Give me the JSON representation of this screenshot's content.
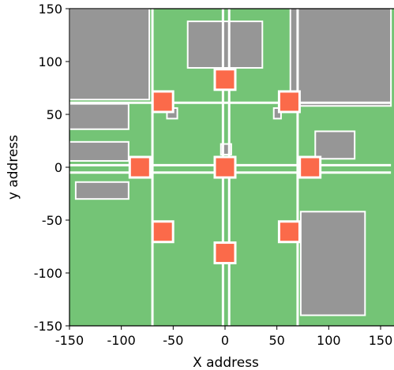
{
  "chart_data": {
    "type": "scatter",
    "title": "",
    "xlabel": "X address",
    "ylabel": "y address",
    "xlim": [
      -150,
      150
    ],
    "ylim": [
      -150,
      150
    ],
    "xticks": [
      -150,
      -100,
      -50,
      0,
      50,
      100,
      150
    ],
    "yticks": [
      -150,
      -100,
      -50,
      0,
      50,
      100,
      150
    ],
    "xtick_labels": [
      "-150",
      "-100",
      "-50",
      "0",
      "50",
      "100",
      "150"
    ],
    "ytick_labels": [
      "-150",
      "-100",
      "-50",
      "0",
      "50",
      "100",
      "150"
    ],
    "grid": false,
    "legend": "none",
    "colors": {
      "background": "#74c476",
      "block": "#969696",
      "road": "#ffffff",
      "marker": "#fb6a4a"
    },
    "series": [
      {
        "marker": "square",
        "x": [
          0,
          0,
          -60,
          62,
          -82,
          82,
          -60,
          62,
          0
        ],
        "y": [
          83,
          0,
          62,
          62,
          0,
          0,
          -61,
          -61,
          -81
        ]
      }
    ],
    "regions": [
      {
        "kind": "block",
        "x": [
          -150,
          -73
        ],
        "y": [
          64,
          150
        ]
      },
      {
        "kind": "block",
        "x": [
          -36,
          36
        ],
        "y": [
          94,
          138
        ]
      },
      {
        "kind": "block",
        "x": [
          63,
          160
        ],
        "y": [
          58,
          160
        ]
      },
      {
        "kind": "block",
        "x": [
          -150,
          -93
        ],
        "y": [
          36,
          60
        ]
      },
      {
        "kind": "block",
        "x": [
          -150,
          -93
        ],
        "y": [
          6,
          24
        ]
      },
      {
        "kind": "block",
        "x": [
          87,
          125
        ],
        "y": [
          8,
          34
        ]
      },
      {
        "kind": "block",
        "x": [
          73,
          135
        ],
        "y": [
          -140,
          -42
        ]
      },
      {
        "kind": "block",
        "x": [
          -144,
          -93
        ],
        "y": [
          -30,
          -14
        ]
      },
      {
        "kind": "block",
        "x": [
          -4,
          6
        ],
        "y": [
          12,
          22
        ]
      },
      {
        "kind": "block",
        "x": [
          -56,
          -46
        ],
        "y": [
          46,
          56
        ]
      },
      {
        "kind": "block",
        "x": [
          47,
          54
        ],
        "y": [
          46,
          56
        ]
      },
      {
        "kind": "road",
        "x": [
          -150,
          160
        ],
        "y": [
          61,
          61
        ]
      },
      {
        "kind": "road",
        "x": [
          -150,
          160
        ],
        "y": [
          2,
          2
        ]
      },
      {
        "kind": "road",
        "x": [
          -150,
          160
        ],
        "y": [
          -5,
          -5
        ]
      },
      {
        "kind": "road",
        "x": [
          -2,
          -2
        ],
        "y": [
          -150,
          150
        ]
      },
      {
        "kind": "road",
        "x": [
          4,
          4
        ],
        "y": [
          -150,
          150
        ]
      },
      {
        "kind": "road",
        "x": [
          -70,
          -70
        ],
        "y": [
          -150,
          150
        ]
      },
      {
        "kind": "road",
        "x": [
          70,
          70
        ],
        "y": [
          -150,
          150
        ]
      }
    ]
  }
}
